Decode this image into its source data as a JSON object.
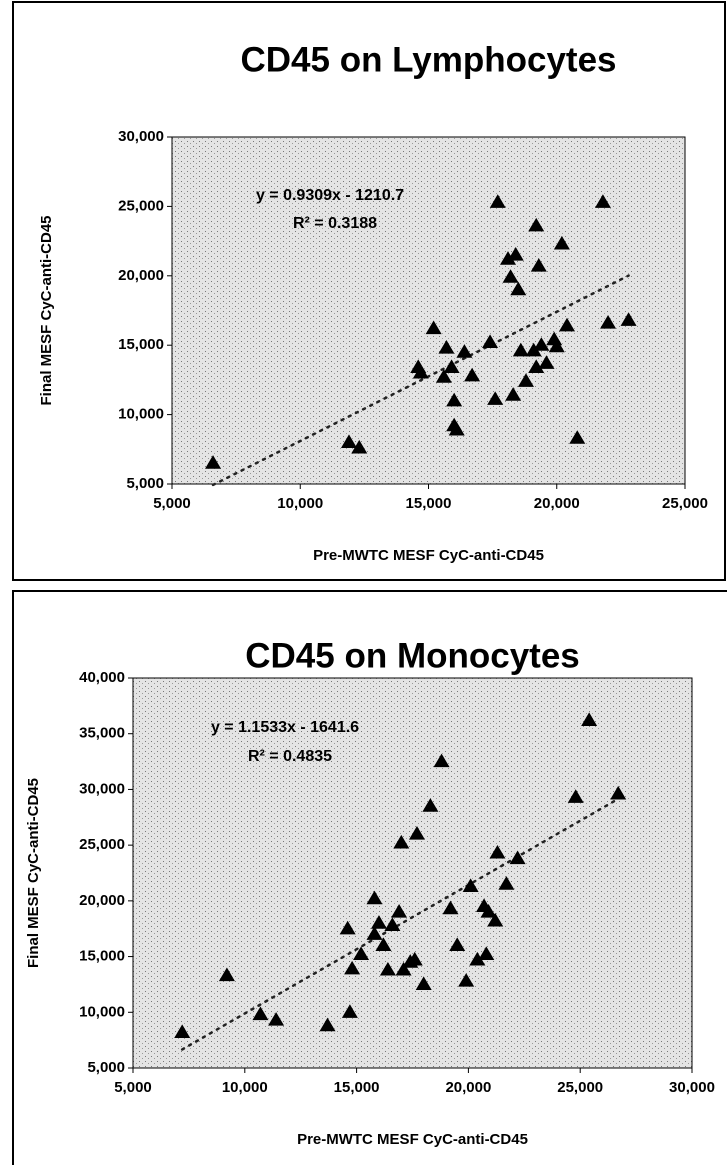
{
  "chart_data": [
    {
      "type": "scatter",
      "title": "CD45 on Lymphocytes",
      "x_label": "Pre-MWTC MESF CyC-anti-CD45",
      "y_label": "Final MESF CyC-anti-CD45",
      "color": "#000000",
      "grid": false,
      "xlim": [
        5000,
        25000
      ],
      "xticks": [
        {
          "value": 5000,
          "label": "5,000"
        },
        {
          "value": 10000,
          "label": "10,000"
        },
        {
          "value": 15000,
          "label": "15,000"
        },
        {
          "value": 20000,
          "label": "20,000"
        },
        {
          "value": 25000,
          "label": "25,000"
        }
      ],
      "ylim": [
        5000,
        30000
      ],
      "yticks": [
        {
          "value": 5000,
          "label": "5,000"
        },
        {
          "value": 10000,
          "label": "10,000"
        },
        {
          "value": 15000,
          "label": "15,000"
        },
        {
          "value": 20000,
          "label": "20,000"
        },
        {
          "value": 25000,
          "label": "25,000"
        },
        {
          "value": 30000,
          "label": "30,000"
        }
      ],
      "trendline": {
        "slope": 0.9309,
        "intercept": -1210.7,
        "label": "y = 0.9309x - 1210.7",
        "r2_label": "R² = 0.3188"
      },
      "x": [
        6600,
        11900,
        12300,
        15200,
        14600,
        14700,
        15600,
        15700,
        15900,
        16000,
        16100,
        16000,
        16400,
        16700,
        17400,
        17600,
        17700,
        18100,
        18400,
        18200,
        18500,
        18300,
        18600,
        18800,
        19100,
        19200,
        19400,
        19200,
        19300,
        19600,
        19900,
        20000,
        20200,
        20400,
        20800,
        21800,
        22000,
        22800
      ],
      "values": [
        6500,
        8000,
        7600,
        16200,
        13400,
        13000,
        12700,
        14800,
        13400,
        9200,
        8900,
        11000,
        14500,
        12800,
        15200,
        11100,
        25300,
        21200,
        21500,
        19900,
        19000,
        11400,
        14600,
        12400,
        14600,
        13400,
        15000,
        23600,
        20700,
        13700,
        15400,
        14900,
        22300,
        16400,
        8300,
        25300,
        16600,
        16800
      ]
    },
    {
      "type": "scatter",
      "title": "CD45 on Monocytes",
      "x_label": "Pre-MWTC MESF CyC-anti-CD45",
      "y_label": "Final MESF CyC-anti-CD45",
      "color": "#000000",
      "grid": false,
      "xlim": [
        5000,
        30000
      ],
      "xticks": [
        {
          "value": 5000,
          "label": "5,000"
        },
        {
          "value": 10000,
          "label": "10,000"
        },
        {
          "value": 15000,
          "label": "15,000"
        },
        {
          "value": 20000,
          "label": "20,000"
        },
        {
          "value": 25000,
          "label": "25,000"
        },
        {
          "value": 30000,
          "label": "30,000"
        }
      ],
      "ylim": [
        5000,
        40000
      ],
      "yticks": [
        {
          "value": 5000,
          "label": "5,000"
        },
        {
          "value": 10000,
          "label": "10,000"
        },
        {
          "value": 15000,
          "label": "15,000"
        },
        {
          "value": 20000,
          "label": "20,000"
        },
        {
          "value": 25000,
          "label": "25,000"
        },
        {
          "value": 30000,
          "label": "30,000"
        },
        {
          "value": 35000,
          "label": "35,000"
        },
        {
          "value": 40000,
          "label": "40,000"
        }
      ],
      "trendline": {
        "slope": 1.1533,
        "intercept": -1641.6,
        "label": "y = 1.1533x - 1641.6",
        "r2_label": "R² = 0.4835"
      },
      "x": [
        7200,
        9200,
        10700,
        11400,
        13700,
        14600,
        14700,
        14800,
        15200,
        15800,
        15800,
        16000,
        16200,
        16400,
        16600,
        16900,
        17000,
        17100,
        17400,
        17700,
        17600,
        18000,
        18300,
        18800,
        19200,
        19500,
        19900,
        20100,
        20400,
        20700,
        20800,
        20900,
        21200,
        21300,
        21700,
        22200,
        24800,
        25400,
        26700
      ],
      "values": [
        8200,
        13300,
        9800,
        9300,
        8800,
        17500,
        10000,
        13900,
        15200,
        17000,
        20200,
        18000,
        16000,
        13800,
        17800,
        19000,
        25200,
        13800,
        14500,
        26000,
        14700,
        12500,
        28500,
        32500,
        19300,
        16000,
        12800,
        21300,
        14700,
        19500,
        15200,
        19000,
        18200,
        24300,
        21500,
        23800,
        29300,
        36200,
        29600
      ]
    }
  ]
}
